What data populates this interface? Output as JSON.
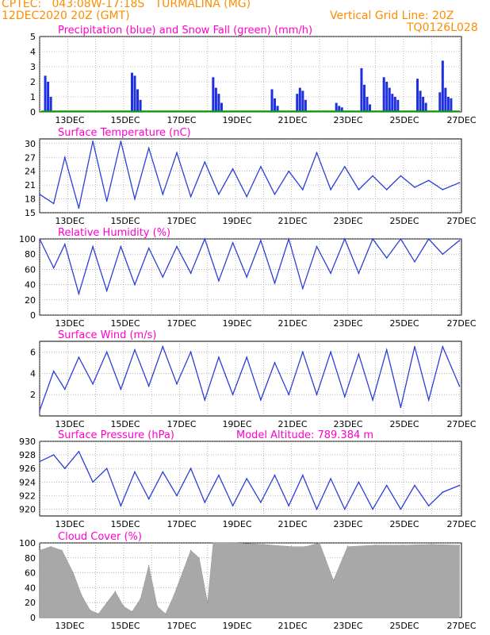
{
  "header": {
    "line1_left": "CPTEC:   043:08W-17:18S   TURMALINA (MG)",
    "line2_left": "12DEC2020 20Z (GMT)",
    "line2_right": "Vertical Grid Line: 20Z",
    "line3_right": "TQ0126L028"
  },
  "colors": {
    "header": "#ff8c00",
    "title": "#ff00cc",
    "line": "#2b3fd8",
    "bar": "#1d2fe0",
    "snow": "#00a000",
    "cloud": "#a8a8a8"
  },
  "x_ticks": [
    "13DEC",
    "15DEC",
    "17DEC",
    "19DEC",
    "21DEC",
    "23DEC",
    "25DEC",
    "27DEC"
  ],
  "chart_data": [
    {
      "type": "bar",
      "title": "Precipitation (blue) and Snow Fall (green) (mm/h)",
      "ylim": [
        0,
        5
      ],
      "yticks": [
        0,
        1,
        2,
        3,
        4,
        5
      ],
      "x": [
        0.2,
        0.3,
        0.4,
        3.3,
        3.4,
        3.5,
        3.6,
        6.2,
        6.3,
        6.4,
        6.5,
        8.3,
        8.4,
        8.5,
        9.2,
        9.3,
        9.4,
        9.5,
        10.6,
        10.7,
        10.8,
        11.5,
        11.6,
        11.7,
        11.8,
        12.3,
        12.4,
        12.5,
        12.6,
        12.7,
        12.8,
        13.5,
        13.6,
        13.7,
        13.8,
        14.3,
        14.4,
        14.5,
        14.6,
        14.7
      ],
      "values": [
        2.4,
        2.0,
        1.0,
        2.6,
        2.4,
        1.5,
        0.8,
        2.3,
        1.6,
        1.2,
        0.6,
        1.5,
        0.9,
        0.4,
        1.2,
        1.6,
        1.4,
        0.8,
        0.6,
        0.4,
        0.3,
        2.9,
        1.8,
        1.0,
        0.5,
        2.3,
        2.0,
        1.6,
        1.2,
        1.0,
        0.8,
        2.2,
        1.4,
        1.0,
        0.6,
        1.3,
        3.4,
        1.6,
        1.0,
        0.9
      ],
      "snow": "0"
    },
    {
      "type": "line",
      "title": "Surface Temperature (nC)",
      "ylim": [
        15,
        31
      ],
      "yticks": [
        15,
        18,
        21,
        24,
        27,
        30
      ],
      "x": [
        0,
        0.5,
        0.9,
        1.4,
        1.9,
        2.4,
        2.9,
        3.4,
        3.9,
        4.4,
        4.9,
        5.4,
        5.9,
        6.4,
        6.9,
        7.4,
        7.9,
        8.4,
        8.9,
        9.4,
        9.9,
        10.4,
        10.9,
        11.4,
        11.9,
        12.4,
        12.9,
        13.4,
        13.9,
        14.4,
        15
      ],
      "values": [
        19,
        17,
        27,
        16,
        30.5,
        17.5,
        30.5,
        18,
        29,
        19,
        28,
        18.5,
        26,
        19,
        24.5,
        18.5,
        25,
        19,
        24,
        20,
        28,
        20,
        25,
        20,
        23,
        20,
        23,
        20.5,
        22,
        20,
        21.5
      ]
    },
    {
      "type": "line",
      "title": "Relative Humidity (%)",
      "ylim": [
        0,
        100
      ],
      "yticks": [
        0,
        20,
        40,
        60,
        80,
        100
      ],
      "x": [
        0,
        0.5,
        0.9,
        1.4,
        1.9,
        2.4,
        2.9,
        3.4,
        3.9,
        4.4,
        4.9,
        5.4,
        5.9,
        6.4,
        6.9,
        7.4,
        7.9,
        8.4,
        8.9,
        9.4,
        9.9,
        10.4,
        10.9,
        11.4,
        11.9,
        12.4,
        12.9,
        13.4,
        13.9,
        14.4,
        15
      ],
      "values": [
        100,
        62,
        93,
        28,
        90,
        32,
        90,
        40,
        88,
        50,
        90,
        55,
        100,
        45,
        95,
        50,
        98,
        42,
        100,
        35,
        90,
        55,
        100,
        55,
        100,
        75,
        100,
        70,
        100,
        80,
        98
      ]
    },
    {
      "type": "line",
      "title": "Surface Wind (m/s)",
      "ylim": [
        0,
        7
      ],
      "yticks": [
        2,
        4,
        6
      ],
      "x": [
        0,
        0.5,
        0.9,
        1.4,
        1.9,
        2.4,
        2.9,
        3.4,
        3.9,
        4.4,
        4.9,
        5.4,
        5.9,
        6.4,
        6.9,
        7.4,
        7.9,
        8.4,
        8.9,
        9.4,
        9.9,
        10.4,
        10.9,
        11.4,
        11.9,
        12.4,
        12.9,
        13.4,
        13.9,
        14.4,
        15
      ],
      "values": [
        0.5,
        4.2,
        2.5,
        5.5,
        3,
        6,
        2.5,
        6.2,
        2.8,
        6.5,
        3,
        6,
        1.5,
        5.5,
        2,
        5.5,
        1.5,
        5,
        2,
        6,
        2,
        6,
        1.8,
        5.8,
        1.5,
        6.2,
        0.8,
        6.5,
        1.5,
        6.5,
        2.8
      ]
    },
    {
      "type": "line",
      "title": "Surface Pressure (hPa)",
      "annotation": "Model Altitude: 789.384 m",
      "ylim": [
        919,
        930
      ],
      "yticks": [
        920,
        922,
        924,
        926,
        928,
        930
      ],
      "x": [
        0,
        0.5,
        0.9,
        1.4,
        1.9,
        2.4,
        2.9,
        3.4,
        3.9,
        4.4,
        4.9,
        5.4,
        5.9,
        6.4,
        6.9,
        7.4,
        7.9,
        8.4,
        8.9,
        9.4,
        9.9,
        10.4,
        10.9,
        11.4,
        11.9,
        12.4,
        12.9,
        13.4,
        13.9,
        14.4,
        15
      ],
      "values": [
        927,
        928,
        926,
        928.5,
        924,
        926,
        920.5,
        925.5,
        921.5,
        925.5,
        922,
        926,
        921,
        925,
        920.5,
        924.5,
        921,
        925,
        920.5,
        925,
        920,
        924.5,
        920,
        924,
        920,
        923.5,
        920,
        923.5,
        920.5,
        922.5,
        923.5
      ]
    },
    {
      "type": "area",
      "title": "Cloud Cover (%)",
      "ylim": [
        0,
        100
      ],
      "yticks": [
        0,
        20,
        40,
        60,
        80,
        100
      ],
      "x": [
        0,
        0.4,
        0.8,
        1.2,
        1.5,
        1.8,
        2.1,
        2.4,
        2.7,
        3.0,
        3.3,
        3.6,
        3.9,
        4.2,
        4.5,
        4.8,
        5.1,
        5.4,
        5.7,
        6.0,
        6.2,
        7.0,
        8.0,
        9.0,
        9.5,
        10.0,
        10.5,
        11.0,
        12.0,
        13.0,
        14.0,
        15.0
      ],
      "values": [
        90,
        95,
        90,
        60,
        30,
        10,
        5,
        20,
        35,
        15,
        8,
        25,
        70,
        15,
        5,
        30,
        60,
        90,
        80,
        20,
        100,
        100,
        98,
        95,
        95,
        100,
        50,
        95,
        97,
        97,
        98,
        97
      ]
    }
  ]
}
